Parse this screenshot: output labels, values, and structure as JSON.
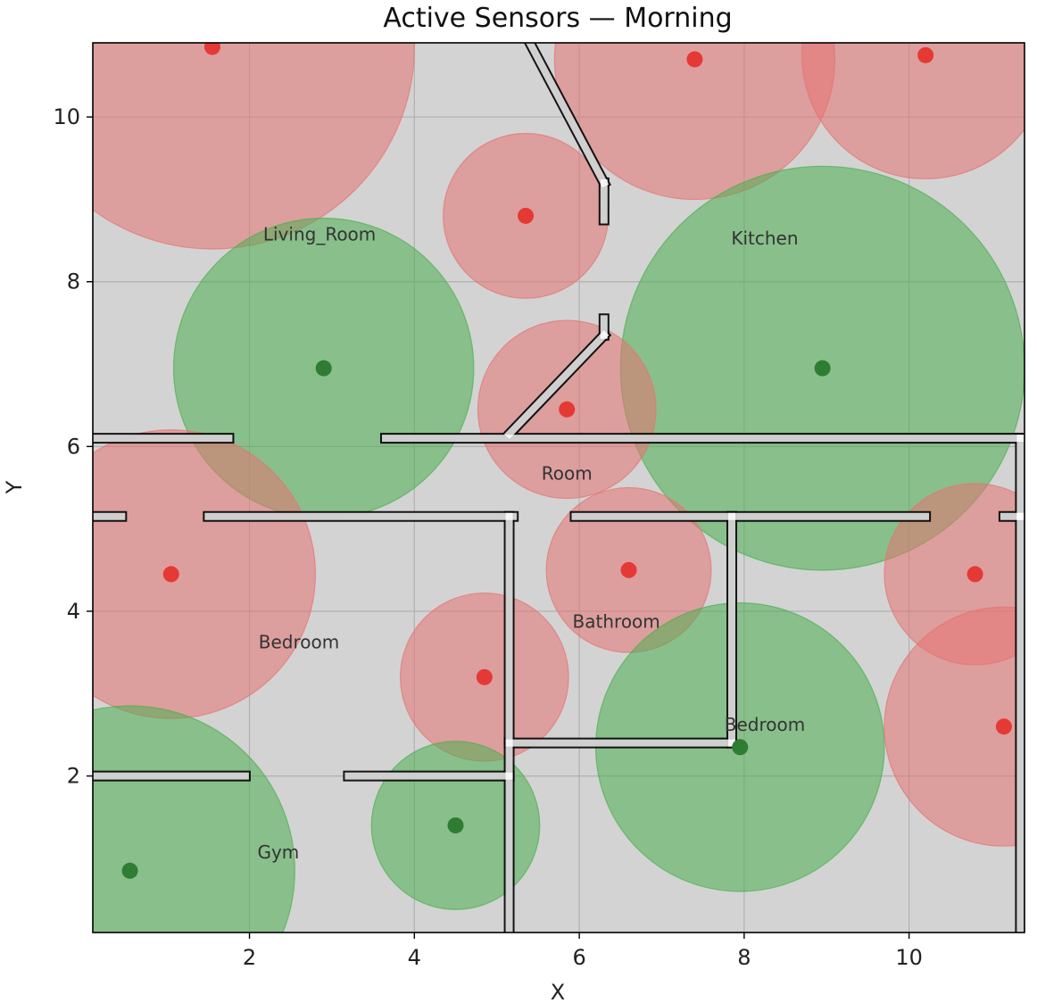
{
  "chart_data": {
    "type": "scatter",
    "title": "Active Sensors — Morning",
    "xlabel": "X",
    "ylabel": "Y",
    "xlim": [
      0.1,
      11.4
    ],
    "ylim": [
      0.1,
      10.9
    ],
    "xticks": [
      2,
      4,
      6,
      8,
      10
    ],
    "yticks": [
      2,
      4,
      6,
      8,
      10
    ],
    "grid": true,
    "background": "#d3d3d3",
    "colors": {
      "active": "#2e7d32",
      "active_fill": "#4caf50",
      "inactive": "#e53935",
      "inactive_fill": "#e57373",
      "wall_fill": "#ffffff",
      "wall_stroke": "#000000"
    },
    "sensors": [
      {
        "x": 1.55,
        "y": 10.85,
        "r": 2.45,
        "status": "inactive"
      },
      {
        "x": 7.4,
        "y": 10.7,
        "r": 1.7,
        "status": "inactive"
      },
      {
        "x": 10.2,
        "y": 10.75,
        "r": 1.5,
        "status": "inactive"
      },
      {
        "x": 5.35,
        "y": 8.8,
        "r": 1.0,
        "status": "inactive"
      },
      {
        "x": 2.9,
        "y": 6.95,
        "r": 1.82,
        "status": "active"
      },
      {
        "x": 8.95,
        "y": 6.95,
        "r": 2.45,
        "status": "active"
      },
      {
        "x": 5.85,
        "y": 6.45,
        "r": 1.08,
        "status": "inactive"
      },
      {
        "x": 1.05,
        "y": 4.45,
        "r": 1.75,
        "status": "inactive"
      },
      {
        "x": 6.6,
        "y": 4.5,
        "r": 1.0,
        "status": "inactive"
      },
      {
        "x": 10.8,
        "y": 4.45,
        "r": 1.1,
        "status": "inactive"
      },
      {
        "x": 4.85,
        "y": 3.2,
        "r": 1.02,
        "status": "inactive"
      },
      {
        "x": 7.95,
        "y": 2.35,
        "r": 1.75,
        "status": "active"
      },
      {
        "x": 11.15,
        "y": 2.6,
        "r": 1.45,
        "status": "inactive"
      },
      {
        "x": 4.5,
        "y": 1.4,
        "r": 1.02,
        "status": "active"
      },
      {
        "x": 0.55,
        "y": 0.85,
        "r": 2.0,
        "status": "active"
      }
    ],
    "rooms": [
      {
        "name": "Living_Room",
        "x": 2.85,
        "y": 8.5
      },
      {
        "name": "Kitchen",
        "x": 8.25,
        "y": 8.45
      },
      {
        "name": "Room",
        "x": 5.85,
        "y": 5.6
      },
      {
        "name": "Bathroom",
        "x": 6.45,
        "y": 3.8
      },
      {
        "name": "Bedroom",
        "x": 2.6,
        "y": 3.55
      },
      {
        "name": "Bedroom",
        "x": 8.25,
        "y": 2.55
      },
      {
        "name": "Gym",
        "x": 2.35,
        "y": 1.0
      }
    ],
    "walls": [
      {
        "x1": 0.1,
        "y1": 6.1,
        "x2": 1.75,
        "y2": 6.1
      },
      {
        "x1": 3.65,
        "y1": 6.1,
        "x2": 11.4,
        "y2": 6.1
      },
      {
        "x1": 0.1,
        "y1": 5.15,
        "x2": 0.45,
        "y2": 5.15
      },
      {
        "x1": 1.5,
        "y1": 5.15,
        "x2": 5.2,
        "y2": 5.15
      },
      {
        "x1": 5.95,
        "y1": 5.15,
        "x2": 10.2,
        "y2": 5.15
      },
      {
        "x1": 11.15,
        "y1": 5.15,
        "x2": 11.4,
        "y2": 5.15
      },
      {
        "x1": 5.15,
        "y1": 5.15,
        "x2": 5.15,
        "y2": 0.1
      },
      {
        "x1": 5.15,
        "y1": 2.4,
        "x2": 7.85,
        "y2": 2.4
      },
      {
        "x1": 7.85,
        "y1": 5.15,
        "x2": 7.85,
        "y2": 2.4
      },
      {
        "x1": 11.35,
        "y1": 5.15,
        "x2": 11.35,
        "y2": 0.1
      },
      {
        "x1": 11.35,
        "y1": 6.1,
        "x2": 11.35,
        "y2": 5.15
      },
      {
        "x1": 0.1,
        "y1": 2.0,
        "x2": 1.95,
        "y2": 2.0
      },
      {
        "x1": 3.2,
        "y1": 2.0,
        "x2": 5.15,
        "y2": 2.0
      },
      {
        "x1": 5.4,
        "y1": 10.9,
        "x2": 6.3,
        "y2": 9.2
      },
      {
        "x1": 6.3,
        "y1": 9.2,
        "x2": 6.3,
        "y2": 8.75
      },
      {
        "x1": 5.15,
        "y1": 6.15,
        "x2": 6.3,
        "y2": 7.35
      },
      {
        "x1": 6.3,
        "y1": 7.35,
        "x2": 6.3,
        "y2": 7.55
      }
    ]
  }
}
